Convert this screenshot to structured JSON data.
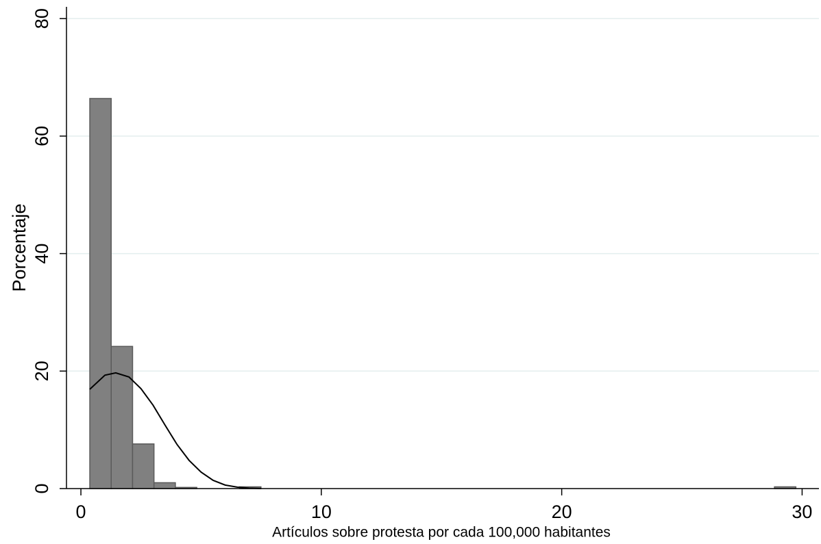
{
  "chart_data": {
    "type": "histogram",
    "x_label": "Artículos sobre protesta por cada 100,000 habitantes",
    "y_label": "Porcentaje",
    "bins": [
      0.37,
      1.26,
      2.15,
      3.04,
      3.93,
      4.82,
      5.71,
      6.6,
      7.49,
      8.38,
      9.27,
      10.16,
      11.05,
      11.94,
      12.83,
      13.72,
      14.61,
      15.5,
      16.39,
      17.28,
      18.17,
      19.06,
      19.95,
      20.84,
      21.73,
      22.62,
      23.51,
      24.4,
      25.29,
      26.18,
      27.07,
      27.96,
      28.85,
      29.74
    ],
    "values": [
      66.4,
      24.2,
      7.6,
      1.0,
      0.2,
      0,
      0,
      0.3,
      0,
      0,
      0,
      0,
      0,
      0,
      0,
      0,
      0,
      0,
      0,
      0,
      0,
      0,
      0,
      0,
      0,
      0,
      0,
      0,
      0,
      0,
      0,
      0,
      0.3
    ],
    "color": "#808080",
    "curve": {
      "x": [
        0.37,
        1.0,
        1.45,
        2.0,
        2.5,
        3.0,
        3.5,
        4.0,
        4.5,
        5.0,
        5.5,
        6.0,
        6.5,
        7.0,
        7.5
      ],
      "values": [
        16.9,
        19.3,
        19.7,
        19.0,
        17.0,
        14.2,
        10.8,
        7.5,
        4.8,
        2.8,
        1.4,
        0.6,
        0.25,
        0.08,
        0.02
      ],
      "color": "#000000"
    },
    "xlim": [
      -0.6,
      30.7
    ],
    "ylim": [
      0,
      82
    ],
    "xticks": [
      0,
      10,
      20,
      30
    ],
    "yticks": [
      0,
      20,
      40,
      60,
      80
    ],
    "grid": true
  }
}
